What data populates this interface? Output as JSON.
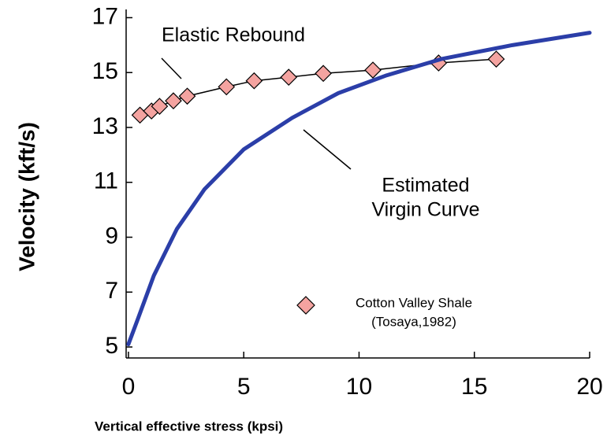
{
  "chart_data": {
    "type": "line",
    "x_label": "Vertical effective stress (kpsi)",
    "y_label": "Velocity (kft/s)",
    "xlim": [
      -0.1,
      20
    ],
    "ylim": [
      4.6,
      17.3
    ],
    "xticks": [
      0,
      5,
      10,
      15,
      20
    ],
    "yticks": [
      5,
      7,
      9,
      11,
      13,
      15,
      17
    ],
    "grid": false,
    "series": [
      {
        "name": "Cotton Valley Shale",
        "source": "(Tosaya,1982)",
        "color": "#f4a3a0",
        "line_color": "#000000",
        "marker": "diamond",
        "x": [
          0.5,
          1.0,
          1.35,
          1.95,
          2.55,
          4.25,
          5.45,
          6.95,
          8.45,
          10.6,
          13.45,
          15.95
        ],
        "values": [
          13.45,
          13.6,
          13.77,
          13.97,
          14.14,
          14.48,
          14.7,
          14.83,
          14.97,
          15.09,
          15.35,
          15.49
        ]
      },
      {
        "color": "#2b3ea8",
        "x": [
          0,
          0.4,
          1.1,
          2.1,
          3.3,
          5,
          7.1,
          9.1,
          11.2,
          13.6,
          16.65,
          20
        ],
        "values": [
          5.1,
          6.0,
          7.6,
          9.3,
          10.75,
          12.2,
          13.35,
          14.25,
          14.9,
          15.5,
          16.0,
          16.45
        ]
      }
    ],
    "annotations": [
      "Elastic Rebound",
      "Estimated",
      "Virgin Curve"
    ]
  }
}
